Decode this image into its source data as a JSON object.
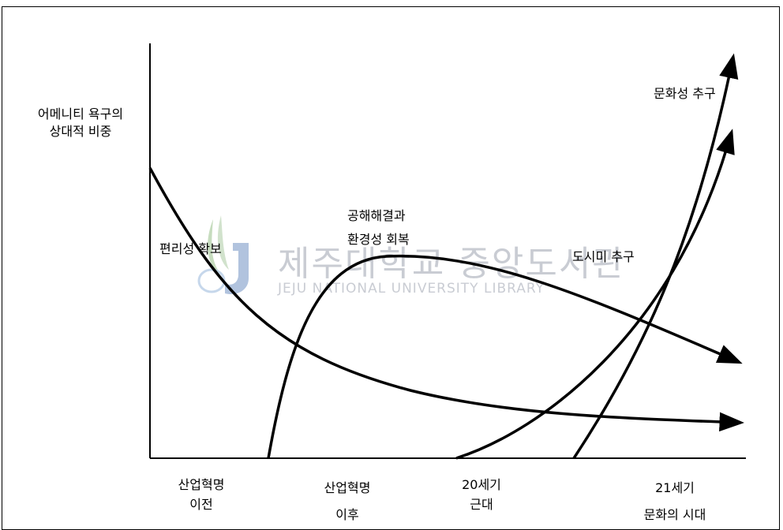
{
  "y_axis_label": [
    "어메니티 욕구의",
    "상대적 비중"
  ],
  "curve_labels": {
    "convenience": "편리성 확보",
    "pollution": [
      "공해해결과",
      "환경성 회복"
    ],
    "urbanity": "도시미 추구",
    "culture": "문화성 추구"
  },
  "x_periods": [
    {
      "line1": "산업혁명",
      "line2": "이전"
    },
    {
      "line1": "산업혁명",
      "line2": "이후"
    },
    {
      "line1": "20세기",
      "line2": "근대"
    },
    {
      "line1": "21세기",
      "line2": "문화의 시대"
    }
  ],
  "watermark": {
    "korean": "제주대학교 중앙도서관",
    "english": "JEJU NATIONAL UNIVERSITY LIBRARY"
  },
  "colors": {
    "line": "#000000",
    "watermark": "#c9ccd3",
    "logo_green": "#a9c9a0",
    "logo_blue": "#9db4d6"
  }
}
